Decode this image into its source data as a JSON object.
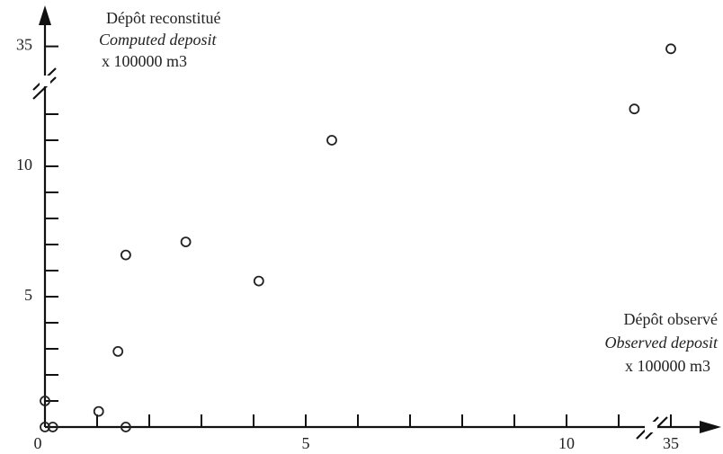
{
  "chart_data": {
    "type": "scatter",
    "y_label": [
      "Dépôt reconstitué",
      "Computed deposit",
      "x 100000  m3"
    ],
    "x_label": [
      "Dépôt observé",
      "Observed deposit",
      "x 100000  m3"
    ],
    "x": [
      0,
      0.15,
      0,
      1.03,
      1.55,
      1.4,
      1.55,
      2.7,
      4.1,
      5.5,
      11.3,
      35
    ],
    "values": [
      0,
      0,
      1,
      0.6,
      0,
      2.9,
      6.6,
      7.1,
      5.6,
      11.0,
      12.2,
      34
    ],
    "color": "#222",
    "xlim": [
      0,
      35
    ],
    "ylim": [
      0,
      35
    ],
    "x_break": [
      11.5,
      35
    ],
    "y_break": [
      12.5,
      35
    ],
    "xticks": [
      0,
      5,
      10,
      35
    ],
    "yticks": [
      5,
      10,
      35
    ],
    "x_minor_ticks": [
      1,
      2,
      3,
      4,
      6,
      7,
      8,
      9,
      11
    ],
    "y_minor_ticks": [
      1,
      2,
      3,
      4,
      6,
      7,
      8,
      9,
      11,
      12
    ]
  }
}
